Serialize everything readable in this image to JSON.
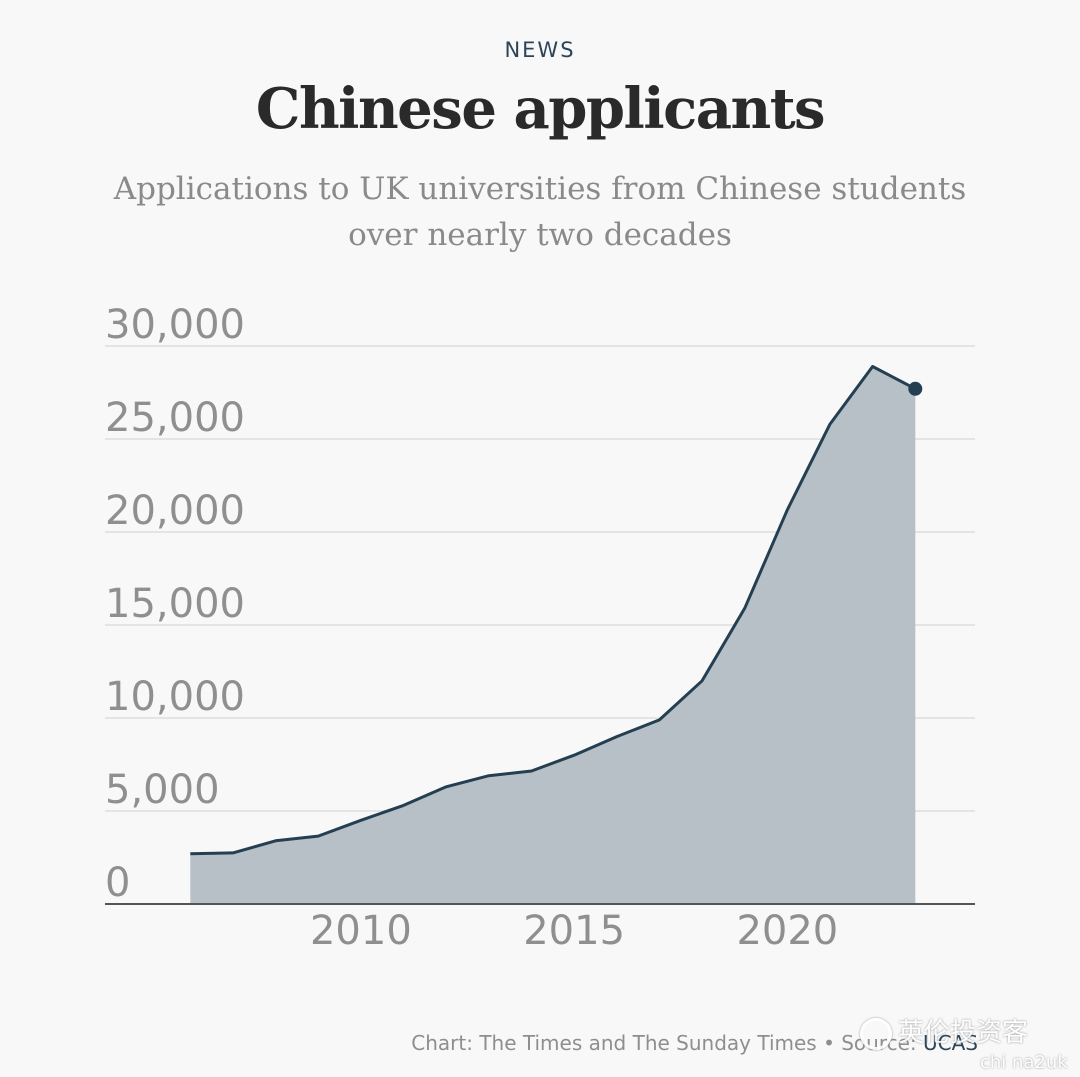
{
  "header": {
    "kicker": "NEWS",
    "title": "Chinese applicants",
    "subtitle": "Applications to UK universities from Chinese students over nearly two decades"
  },
  "footer": {
    "credit": "Chart: The Times and The Sunday Times • Source: ",
    "source": "UCAS"
  },
  "watermark": {
    "text": "英伦投资客",
    "sub": "chi na2uk"
  },
  "colors": {
    "line": "#253f52",
    "area": "#b8c0c7",
    "grid": "#dddddd",
    "tick_text": "#8f8f8f",
    "axis": "#555555"
  },
  "chart_data": {
    "type": "area",
    "title": "Chinese applicants",
    "subtitle": "Applications to UK universities from Chinese students over nearly two decades",
    "xlabel": "",
    "ylabel": "",
    "x": [
      2006,
      2007,
      2008,
      2009,
      2010,
      2011,
      2012,
      2013,
      2014,
      2015,
      2016,
      2017,
      2018,
      2019,
      2020,
      2021,
      2022,
      2023
    ],
    "values": [
      2700,
      2750,
      3400,
      3650,
      4500,
      5300,
      6300,
      6900,
      7150,
      8000,
      9000,
      9900,
      12000,
      15900,
      21200,
      25800,
      28900,
      27700
    ],
    "xlim": [
      2004.0,
      2024.4
    ],
    "ylim": [
      0,
      30000
    ],
    "y_ticks": [
      0,
      5000,
      10000,
      15000,
      20000,
      25000,
      30000
    ],
    "y_tick_labels": [
      "0",
      "5,000",
      "10,000",
      "15,000",
      "20,000",
      "25,000",
      "30,000"
    ],
    "x_ticks": [
      2010,
      2015,
      2020
    ],
    "x_tick_labels": [
      "2010",
      "2015",
      "2020"
    ],
    "grid": true,
    "end_marker": true
  }
}
